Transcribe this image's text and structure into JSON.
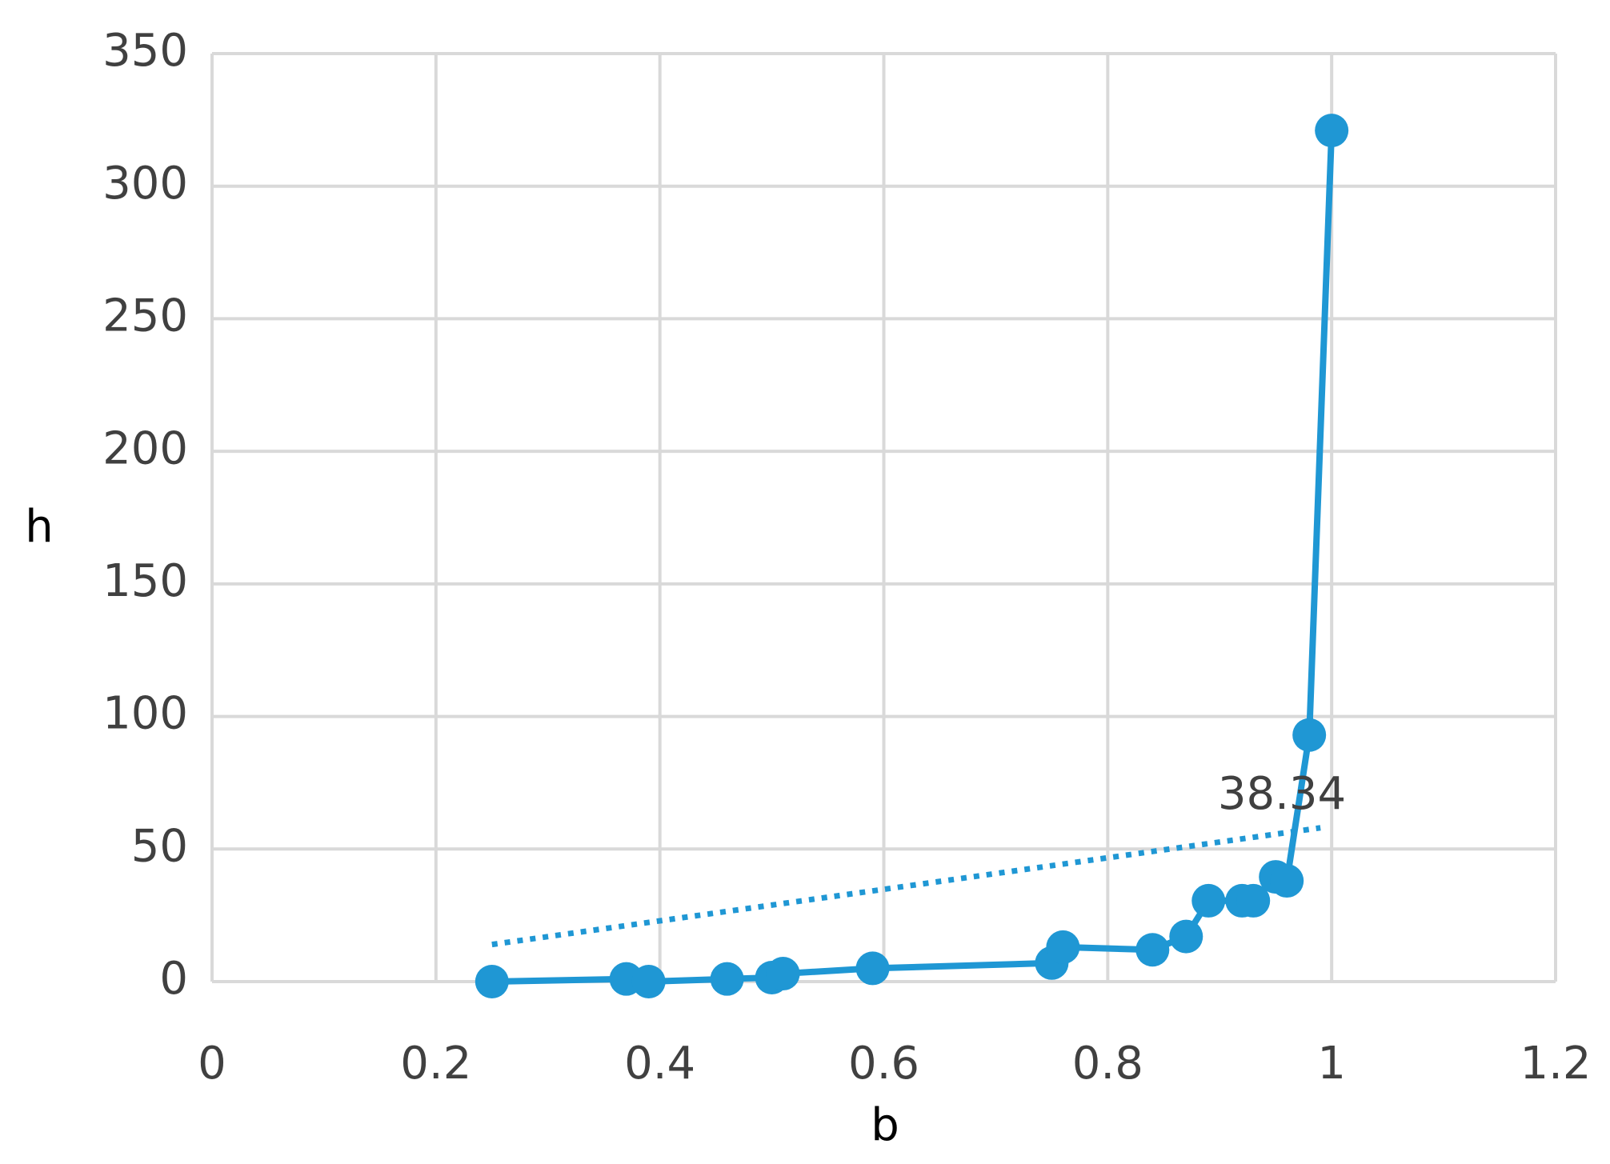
{
  "chart_data": {
    "type": "scatter",
    "x_label": "b",
    "y_label": "h",
    "x": [
      0.25,
      0.37,
      0.39,
      0.46,
      0.5,
      0.51,
      0.59,
      0.75,
      0.76,
      0.84,
      0.87,
      0.89,
      0.92,
      0.93,
      0.95,
      0.96,
      0.98,
      1.0
    ],
    "values": [
      0,
      1,
      0,
      1,
      1.5,
      3,
      5,
      7,
      13,
      12,
      17,
      30.5,
      30.5,
      30.5,
      39.5,
      38,
      93,
      321
    ],
    "color": "#1f97d4",
    "lines": true,
    "trendline": {
      "x": [
        0.25,
        0.99
      ],
      "values": [
        14,
        58
      ]
    },
    "annotation": "38.34",
    "xlim": [
      0,
      1.2
    ],
    "xticks": [
      0,
      0.2,
      0.4,
      0.6,
      0.8,
      1,
      1.2
    ],
    "ylim": [
      0,
      350
    ],
    "yticks": [
      0,
      50,
      100,
      150,
      200,
      250,
      300,
      350
    ],
    "grid": true
  }
}
